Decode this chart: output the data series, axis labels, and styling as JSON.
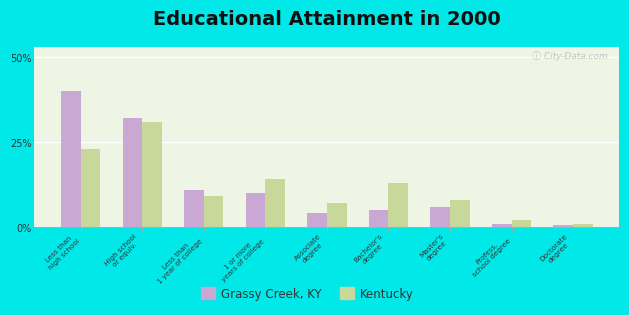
{
  "title": "Educational Attainment in 2000",
  "categories": [
    "Less than\nhigh school",
    "High school\nor equiv.",
    "Less than\n1 year of college",
    "1 or more\nyears of college",
    "Associate\ndegree",
    "Bachelor's\ndegree",
    "Master's\ndegree",
    "Profess.\nschool degree",
    "Doctorate\ndegree"
  ],
  "grassy_creek": [
    40,
    32,
    11,
    10,
    4,
    5,
    6,
    1,
    0.5
  ],
  "kentucky": [
    23,
    31,
    9,
    14,
    7,
    13,
    8,
    2,
    1
  ],
  "grassy_color": "#c9a8d4",
  "kentucky_color": "#c8d89a",
  "background_color": "#00e8e8",
  "plot_bg_color": "#eef5e4",
  "yticks": [
    0,
    25,
    50
  ],
  "ylim": [
    0,
    53
  ],
  "ylabel_labels": [
    "0%",
    "25%",
    "50%"
  ],
  "legend_grassy": "Grassy Creek, KY",
  "legend_kentucky": "Kentucky",
  "title_fontsize": 14,
  "watermark": "ⓘ City-Data.com"
}
